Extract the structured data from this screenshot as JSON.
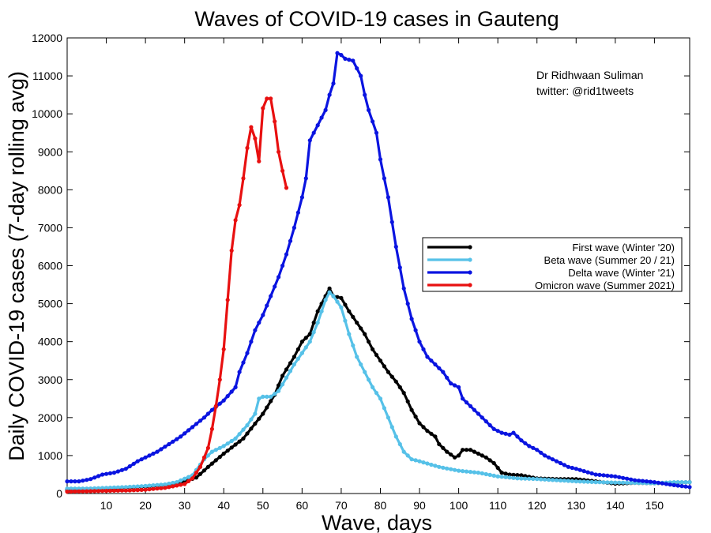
{
  "chart_data": {
    "type": "line",
    "title": "Waves of COVID-19 cases in Gauteng",
    "xlabel": "Wave, days",
    "ylabel": "Daily COVID-19 cases (7-day rolling avg)",
    "xlim": [
      0,
      159
    ],
    "ylim": [
      0,
      12000
    ],
    "xticks": [
      10,
      20,
      30,
      40,
      50,
      60,
      70,
      80,
      90,
      100,
      110,
      120,
      130,
      140,
      150
    ],
    "yticks": [
      0,
      1000,
      2000,
      3000,
      4000,
      5000,
      6000,
      7000,
      8000,
      9000,
      10000,
      11000,
      12000
    ],
    "grid": false,
    "legend_position": "right",
    "annotation": [
      "Dr Ridhwaan Suliman",
      "twitter: @rid1tweets"
    ],
    "series": [
      {
        "name": "First wave (Winter '20)",
        "color": "#000000",
        "points": [
          [
            0,
            100
          ],
          [
            5,
            110
          ],
          [
            10,
            130
          ],
          [
            15,
            160
          ],
          [
            20,
            180
          ],
          [
            25,
            230
          ],
          [
            30,
            320
          ],
          [
            33,
            420
          ],
          [
            36,
            700
          ],
          [
            40,
            1050
          ],
          [
            45,
            1450
          ],
          [
            50,
            2100
          ],
          [
            53,
            2600
          ],
          [
            55,
            3100
          ],
          [
            58,
            3600
          ],
          [
            60,
            4000
          ],
          [
            62,
            4200
          ],
          [
            64,
            4800
          ],
          [
            66,
            5200
          ],
          [
            67,
            5400
          ],
          [
            68,
            5200
          ],
          [
            70,
            5150
          ],
          [
            72,
            4800
          ],
          [
            74,
            4500
          ],
          [
            76,
            4200
          ],
          [
            78,
            3800
          ],
          [
            80,
            3500
          ],
          [
            82,
            3200
          ],
          [
            84,
            2950
          ],
          [
            86,
            2650
          ],
          [
            88,
            2200
          ],
          [
            90,
            1850
          ],
          [
            92,
            1650
          ],
          [
            94,
            1500
          ],
          [
            95,
            1300
          ],
          [
            97,
            1100
          ],
          [
            99,
            950
          ],
          [
            100,
            1000
          ],
          [
            101,
            1150
          ],
          [
            103,
            1150
          ],
          [
            105,
            1050
          ],
          [
            107,
            950
          ],
          [
            109,
            800
          ],
          [
            111,
            550
          ],
          [
            113,
            500
          ],
          [
            116,
            480
          ],
          [
            120,
            400
          ],
          [
            125,
            380
          ],
          [
            130,
            380
          ],
          [
            135,
            320
          ],
          [
            140,
            260
          ],
          [
            145,
            280
          ],
          [
            150,
            270
          ],
          [
            155,
            290
          ],
          [
            159,
            300
          ]
        ]
      },
      {
        "name": "Beta wave (Summer 20 / 21)",
        "color": "#56c1e8",
        "points": [
          [
            0,
            130
          ],
          [
            5,
            130
          ],
          [
            10,
            150
          ],
          [
            15,
            170
          ],
          [
            20,
            200
          ],
          [
            25,
            240
          ],
          [
            28,
            300
          ],
          [
            32,
            480
          ],
          [
            35,
            900
          ],
          [
            37,
            1100
          ],
          [
            40,
            1250
          ],
          [
            43,
            1450
          ],
          [
            46,
            1800
          ],
          [
            48,
            2100
          ],
          [
            49,
            2500
          ],
          [
            50,
            2550
          ],
          [
            52,
            2550
          ],
          [
            54,
            2700
          ],
          [
            56,
            3050
          ],
          [
            58,
            3400
          ],
          [
            60,
            3700
          ],
          [
            62,
            4000
          ],
          [
            64,
            4500
          ],
          [
            66,
            5100
          ],
          [
            67,
            5300
          ],
          [
            68,
            5200
          ],
          [
            70,
            4900
          ],
          [
            72,
            4200
          ],
          [
            74,
            3600
          ],
          [
            76,
            3200
          ],
          [
            78,
            2800
          ],
          [
            80,
            2500
          ],
          [
            82,
            2000
          ],
          [
            84,
            1500
          ],
          [
            86,
            1100
          ],
          [
            88,
            900
          ],
          [
            90,
            850
          ],
          [
            95,
            700
          ],
          [
            100,
            600
          ],
          [
            105,
            550
          ],
          [
            110,
            450
          ],
          [
            115,
            400
          ],
          [
            120,
            380
          ],
          [
            125,
            350
          ],
          [
            130,
            320
          ],
          [
            135,
            300
          ],
          [
            140,
            290
          ],
          [
            150,
            270
          ],
          [
            155,
            300
          ],
          [
            159,
            300
          ]
        ]
      },
      {
        "name": "Delta wave (Winter '21)",
        "color": "#0a14e0",
        "points": [
          [
            0,
            320
          ],
          [
            3,
            320
          ],
          [
            6,
            380
          ],
          [
            9,
            500
          ],
          [
            12,
            550
          ],
          [
            15,
            650
          ],
          [
            18,
            850
          ],
          [
            20,
            950
          ],
          [
            23,
            1100
          ],
          [
            26,
            1300
          ],
          [
            29,
            1500
          ],
          [
            32,
            1750
          ],
          [
            35,
            2000
          ],
          [
            37,
            2200
          ],
          [
            40,
            2450
          ],
          [
            43,
            2800
          ],
          [
            44,
            3200
          ],
          [
            46,
            3700
          ],
          [
            48,
            4300
          ],
          [
            50,
            4700
          ],
          [
            52,
            5200
          ],
          [
            54,
            5700
          ],
          [
            56,
            6300
          ],
          [
            58,
            7000
          ],
          [
            60,
            7800
          ],
          [
            61,
            8300
          ],
          [
            62,
            9300
          ],
          [
            64,
            9700
          ],
          [
            66,
            10100
          ],
          [
            67,
            10500
          ],
          [
            68,
            10800
          ],
          [
            69,
            11600
          ],
          [
            70,
            11550
          ],
          [
            71,
            11450
          ],
          [
            73,
            11400
          ],
          [
            75,
            11000
          ],
          [
            76,
            10500
          ],
          [
            77,
            10100
          ],
          [
            79,
            9500
          ],
          [
            80,
            8800
          ],
          [
            82,
            7800
          ],
          [
            84,
            6500
          ],
          [
            86,
            5400
          ],
          [
            88,
            4600
          ],
          [
            90,
            4000
          ],
          [
            92,
            3600
          ],
          [
            94,
            3400
          ],
          [
            96,
            3200
          ],
          [
            98,
            2900
          ],
          [
            100,
            2800
          ],
          [
            101,
            2500
          ],
          [
            103,
            2300
          ],
          [
            105,
            2100
          ],
          [
            107,
            1900
          ],
          [
            109,
            1700
          ],
          [
            111,
            1600
          ],
          [
            113,
            1550
          ],
          [
            114,
            1600
          ],
          [
            116,
            1400
          ],
          [
            118,
            1250
          ],
          [
            120,
            1150
          ],
          [
            122,
            1000
          ],
          [
            125,
            850
          ],
          [
            128,
            700
          ],
          [
            130,
            650
          ],
          [
            135,
            500
          ],
          [
            140,
            450
          ],
          [
            145,
            350
          ],
          [
            150,
            300
          ],
          [
            155,
            220
          ],
          [
            159,
            170
          ]
        ]
      },
      {
        "name": "Omicron wave (Summer 2021)",
        "color": "#e81010",
        "points": [
          [
            0,
            50
          ],
          [
            5,
            60
          ],
          [
            10,
            70
          ],
          [
            15,
            80
          ],
          [
            20,
            100
          ],
          [
            25,
            150
          ],
          [
            30,
            250
          ],
          [
            32,
            400
          ],
          [
            34,
            700
          ],
          [
            36,
            1200
          ],
          [
            37,
            1700
          ],
          [
            38,
            2300
          ],
          [
            39,
            3000
          ],
          [
            40,
            3800
          ],
          [
            41,
            5100
          ],
          [
            42,
            6400
          ],
          [
            43,
            7200
          ],
          [
            44,
            7600
          ],
          [
            45,
            8300
          ],
          [
            46,
            9100
          ],
          [
            47,
            9650
          ],
          [
            48,
            9350
          ],
          [
            49,
            8750
          ],
          [
            50,
            10150
          ],
          [
            51,
            10400
          ],
          [
            52,
            10400
          ],
          [
            53,
            9800
          ],
          [
            54,
            9000
          ],
          [
            55,
            8500
          ],
          [
            56,
            8050
          ]
        ]
      }
    ]
  }
}
